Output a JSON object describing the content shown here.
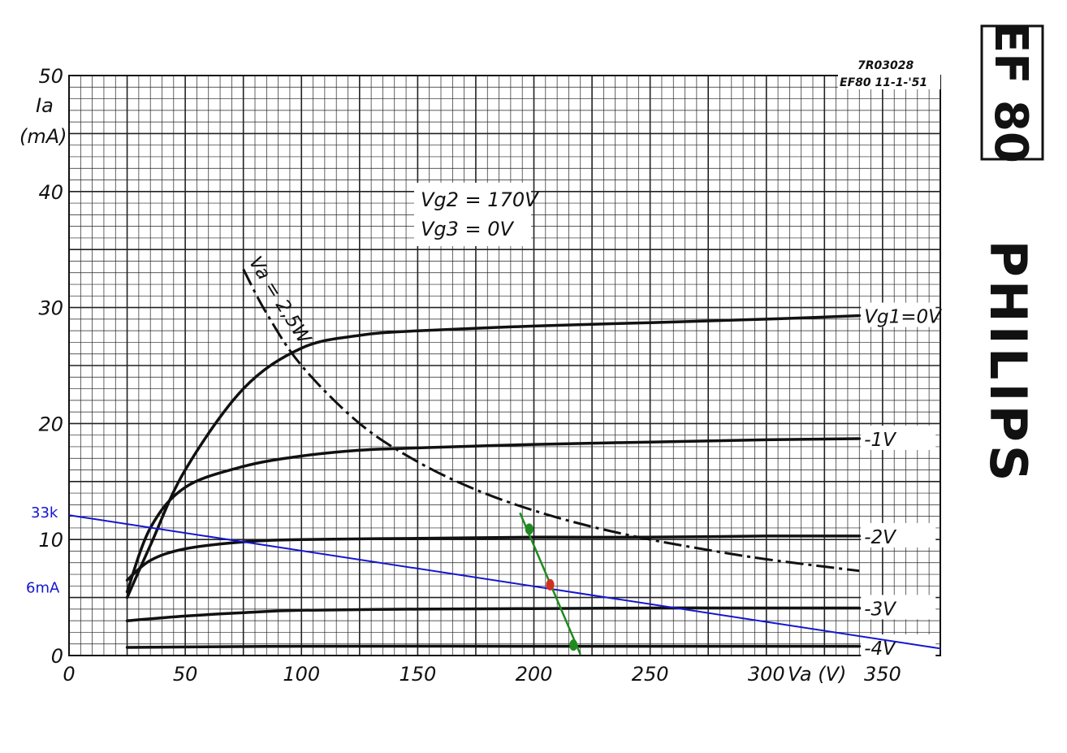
{
  "chart_data": {
    "type": "line",
    "title": "",
    "doc_ref": "7R03028",
    "doc_date": "EF80  11-1-'51",
    "tube": "EF 80",
    "brand": "PHILIPS",
    "conditions": [
      "Vg2 = 170V",
      "Vg3 = 0V"
    ],
    "ylabel_line1": "Ia",
    "ylabel_line2": "(mA)",
    "xlabel": "Va (V)",
    "xlim": [
      0,
      375
    ],
    "ylim": [
      0,
      50
    ],
    "x_ticks": [
      {
        "value": 0,
        "label": "0"
      },
      {
        "value": 50,
        "label": "50"
      },
      {
        "value": 100,
        "label": "100"
      },
      {
        "value": 150,
        "label": "150"
      },
      {
        "value": 200,
        "label": "200"
      },
      {
        "value": 250,
        "label": "250"
      },
      {
        "value": 300,
        "label": "300"
      },
      {
        "value": 350,
        "label": "350"
      }
    ],
    "y_ticks": [
      {
        "value": 0,
        "label": "0"
      },
      {
        "value": 10,
        "label": "10"
      },
      {
        "value": 20,
        "label": "20"
      },
      {
        "value": 30,
        "label": "30"
      },
      {
        "value": 40,
        "label": "40"
      },
      {
        "value": 50,
        "label": "50"
      }
    ],
    "grid": true,
    "series": [
      {
        "name": "Vg1=0V",
        "label": "Vg1=0V",
        "label_at": [
          340,
          29.3
        ],
        "x": [
          25,
          35,
          50,
          75,
          100,
          125,
          150,
          200,
          250,
          300,
          340
        ],
        "y": [
          5.0,
          9.5,
          16,
          23,
          26.5,
          27.6,
          28,
          28.4,
          28.7,
          29,
          29.3
        ]
      },
      {
        "name": "Vg1=-1V",
        "label": "-1V",
        "label_at": [
          340,
          18.7
        ],
        "x": [
          25,
          35,
          50,
          75,
          100,
          125,
          150,
          200,
          250,
          300,
          340
        ],
        "y": [
          5.5,
          11,
          14.5,
          16.3,
          17.2,
          17.7,
          17.9,
          18.2,
          18.4,
          18.6,
          18.7
        ]
      },
      {
        "name": "Vg1=-2V",
        "label": "-2V",
        "label_at": [
          340,
          10.3
        ],
        "x": [
          25,
          35,
          50,
          75,
          100,
          150,
          200,
          250,
          300,
          340
        ],
        "y": [
          6.5,
          8.2,
          9.2,
          9.8,
          10.0,
          10.1,
          10.2,
          10.2,
          10.3,
          10.3
        ]
      },
      {
        "name": "Vg1=-3V",
        "label": "-3V",
        "label_at": [
          340,
          4.1
        ],
        "x": [
          25,
          50,
          75,
          100,
          150,
          200,
          250,
          300,
          340
        ],
        "y": [
          3.0,
          3.4,
          3.7,
          3.9,
          4.0,
          4.05,
          4.1,
          4.1,
          4.1
        ]
      },
      {
        "name": "Vg1=-4V",
        "label": "-4V",
        "label_at": [
          340,
          0.7
        ],
        "x": [
          25,
          100,
          200,
          300,
          340
        ],
        "y": [
          0.7,
          0.8,
          0.8,
          0.8,
          0.8
        ]
      }
    ],
    "power_curve": {
      "label": "Va = 2,5W",
      "x": [
        75,
        85,
        100,
        125,
        150,
        175,
        200,
        225,
        250,
        275,
        300,
        340
      ],
      "y": [
        33.3,
        29.5,
        25,
        20,
        16.7,
        14.3,
        12.5,
        11.1,
        10.0,
        9.1,
        8.3,
        7.3
      ]
    },
    "annotations": {
      "load_line": {
        "label": "33k",
        "x": [
          0,
          375
        ],
        "y": [
          12.1,
          0.6
        ],
        "color": "#1515d0"
      },
      "bias_label": {
        "label": "6mA",
        "value": 6.0,
        "color": "#1515d0"
      },
      "green_line": {
        "x": [
          194,
          220
        ],
        "y": [
          12.3,
          0.1
        ],
        "points": [
          [
            198,
            10.9
          ],
          [
            217,
            0.9
          ]
        ],
        "color": "#1f8a1f"
      },
      "operating_point": {
        "x": 207,
        "y": 6.1,
        "color": "#d03020"
      }
    }
  }
}
